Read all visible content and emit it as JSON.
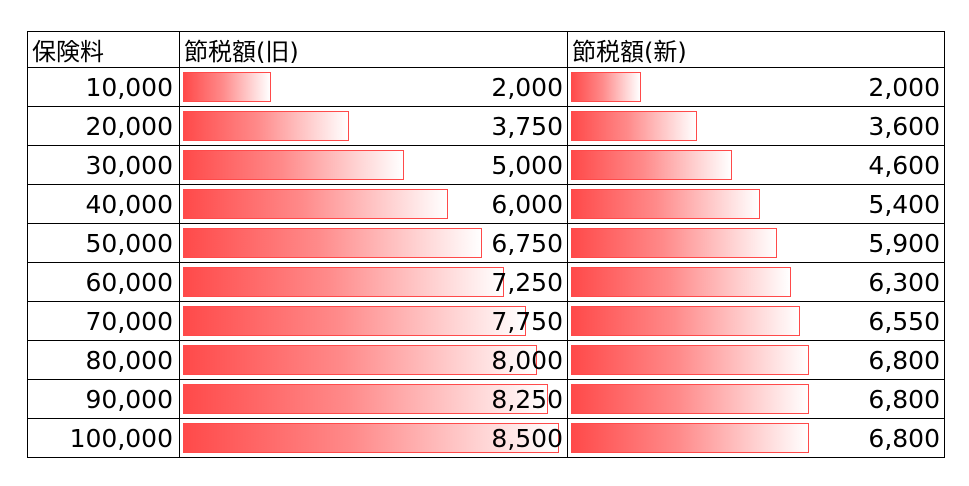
{
  "chart_data": {
    "type": "table",
    "headers": [
      "保険料",
      "節税額(旧)",
      "節税額(新)"
    ],
    "rows": [
      {
        "premium": "10,000",
        "old": 2000,
        "old_label": "2,000",
        "new": 2000,
        "new_label": "2,000"
      },
      {
        "premium": "20,000",
        "old": 3750,
        "old_label": "3,750",
        "new": 3600,
        "new_label": "3,600"
      },
      {
        "premium": "30,000",
        "old": 5000,
        "old_label": "5,000",
        "new": 4600,
        "new_label": "4,600"
      },
      {
        "premium": "40,000",
        "old": 6000,
        "old_label": "6,000",
        "new": 5400,
        "new_label": "5,400"
      },
      {
        "premium": "50,000",
        "old": 6750,
        "old_label": "6,750",
        "new": 5900,
        "new_label": "5,900"
      },
      {
        "premium": "60,000",
        "old": 7250,
        "old_label": "7,250",
        "new": 6300,
        "new_label": "6,300"
      },
      {
        "premium": "70,000",
        "old": 7750,
        "old_label": "7,750",
        "new": 6550,
        "new_label": "6,550"
      },
      {
        "premium": "80,000",
        "old": 8000,
        "old_label": "8,000",
        "new": 6800,
        "new_label": "6,800"
      },
      {
        "premium": "90,000",
        "old": 8250,
        "old_label": "8,250",
        "new": 6800,
        "new_label": "6,800"
      },
      {
        "premium": "100,000",
        "old": 8500,
        "old_label": "8,500",
        "new": 6800,
        "new_label": "6,800"
      }
    ],
    "bar_max": 8500,
    "colors": {
      "bar": "#ff4a4a",
      "bar_fade": "#ffffff",
      "border": "#000000"
    }
  }
}
